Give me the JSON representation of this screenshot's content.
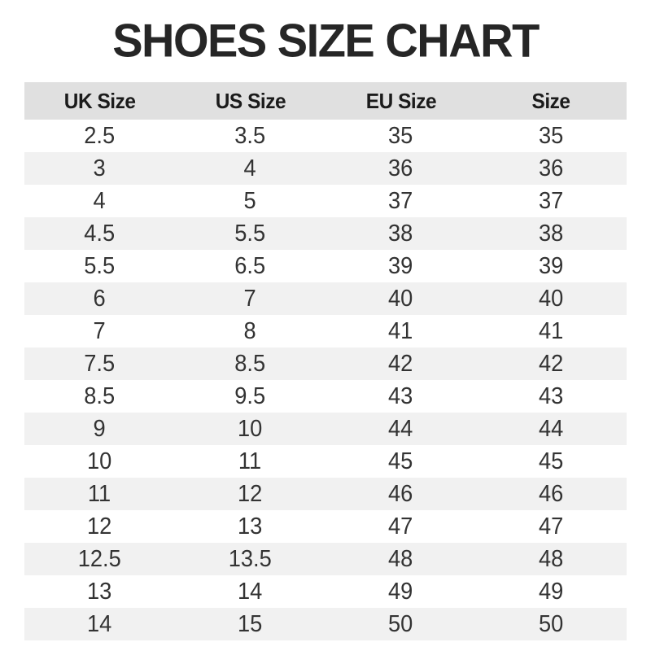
{
  "title": "SHOES SIZE CHART",
  "colors": {
    "page_bg": "#ffffff",
    "title_color": "#262626",
    "header_bg": "#e0e0e0",
    "header_text": "#1b1b1b",
    "row_alt_bg": "#f1f1f1",
    "cell_text": "#333333"
  },
  "chart_data": {
    "type": "table",
    "title": "SHOES SIZE CHART",
    "columns": [
      "UK Size",
      "US Size",
      "EU Size",
      "Size"
    ],
    "rows": [
      [
        "2.5",
        "3.5",
        "35",
        "35"
      ],
      [
        "3",
        "4",
        "36",
        "36"
      ],
      [
        "4",
        "5",
        "37",
        "37"
      ],
      [
        "4.5",
        "5.5",
        "38",
        "38"
      ],
      [
        "5.5",
        "6.5",
        "39",
        "39"
      ],
      [
        "6",
        "7",
        "40",
        "40"
      ],
      [
        "7",
        "8",
        "41",
        "41"
      ],
      [
        "7.5",
        "8.5",
        "42",
        "42"
      ],
      [
        "8.5",
        "9.5",
        "43",
        "43"
      ],
      [
        "9",
        "10",
        "44",
        "44"
      ],
      [
        "10",
        "11",
        "45",
        "45"
      ],
      [
        "11",
        "12",
        "46",
        "46"
      ],
      [
        "12",
        "13",
        "47",
        "47"
      ],
      [
        "12.5",
        "13.5",
        "48",
        "48"
      ],
      [
        "13",
        "14",
        "49",
        "49"
      ],
      [
        "14",
        "15",
        "50",
        "50"
      ]
    ],
    "layout": {
      "header_background": "#e0e0e0",
      "alternating_row_background": "#f1f1f1",
      "first_data_row_background": "#ffffff",
      "text_alignment": "center"
    }
  }
}
